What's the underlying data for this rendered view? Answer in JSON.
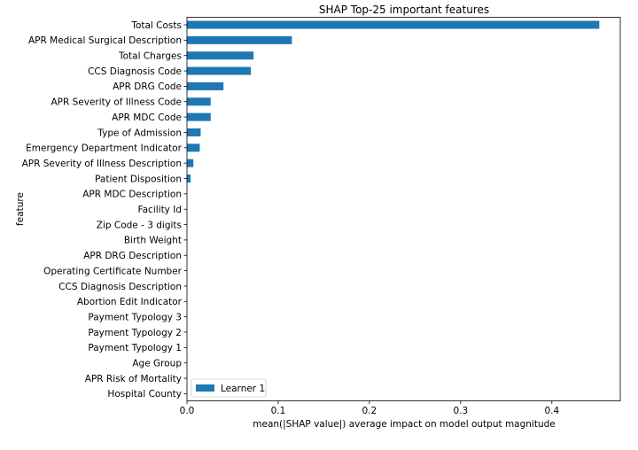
{
  "chart_data": {
    "type": "bar",
    "orientation": "horizontal",
    "title": "SHAP Top-25 important features",
    "xlabel": "mean(|SHAP value|) average impact on model output magnitude",
    "ylabel": "feature",
    "xlim": [
      0,
      0.475
    ],
    "xticks": [
      0.0,
      0.1,
      0.2,
      0.3,
      0.4
    ],
    "xtick_labels": [
      "0.0",
      "0.1",
      "0.2",
      "0.3",
      "0.4"
    ],
    "grid": false,
    "legend_position": "lower-left",
    "bar_color": "#1f77b4",
    "categories": [
      "Total Costs",
      "APR Medical Surgical Description",
      "Total Charges",
      "CCS Diagnosis Code",
      "APR DRG Code",
      "APR Severity of Illness Code",
      "APR MDC Code",
      "Type of Admission",
      "Emergency Department Indicator",
      "APR Severity of Illness Description",
      "Patient Disposition",
      "APR MDC Description",
      "Facility Id",
      "Zip Code - 3 digits",
      "Birth Weight",
      "APR DRG Description",
      "Operating Certificate Number",
      "CCS Diagnosis Description",
      "Abortion Edit Indicator",
      "Payment Typology 3",
      "Payment Typology 2",
      "Payment Typology 1",
      "Age Group",
      "APR Risk of Mortality",
      "Hospital County"
    ],
    "series": [
      {
        "name": "Learner 1",
        "values": [
          0.452,
          0.115,
          0.073,
          0.07,
          0.04,
          0.026,
          0.026,
          0.015,
          0.014,
          0.007,
          0.004,
          0.0,
          0.0,
          0.0,
          0.0,
          0.0,
          0.0,
          0.0,
          0.0,
          0.0,
          0.0,
          0.0,
          0.0,
          0.0,
          0.0
        ]
      }
    ]
  }
}
